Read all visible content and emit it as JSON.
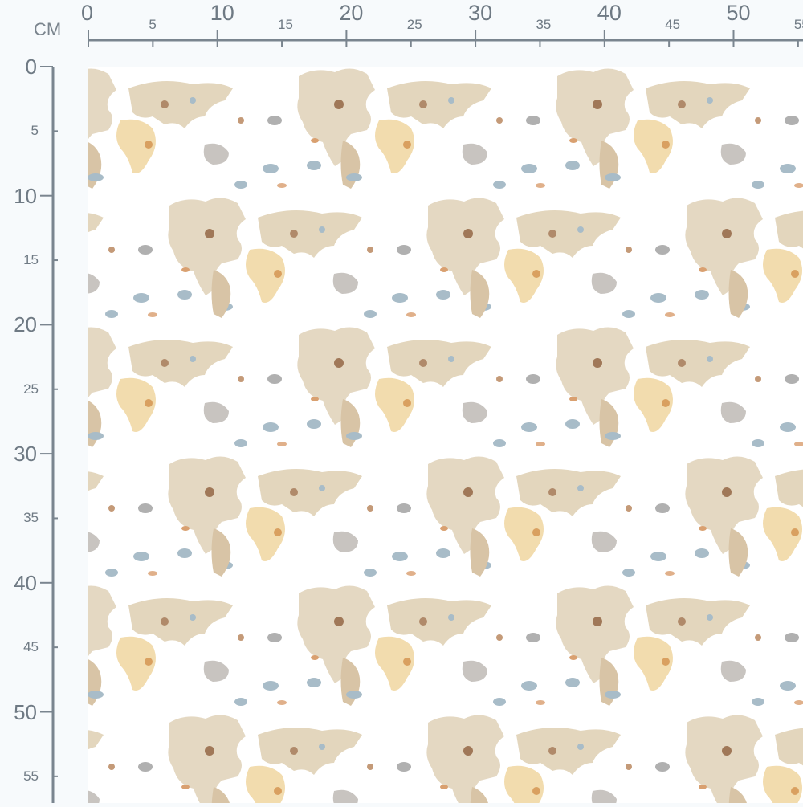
{
  "ruler": {
    "unit": "CM",
    "horizontal_labels": [
      "0",
      "5",
      "10",
      "15",
      "20",
      "25",
      "30",
      "35",
      "40",
      "45",
      "50",
      "55"
    ],
    "vertical_labels": [
      "0",
      "5",
      "10",
      "15",
      "20",
      "25",
      "30",
      "35",
      "40",
      "45",
      "50",
      "55"
    ],
    "color": "#7a858f"
  },
  "fabric": {
    "pattern": "world-map-with-animals",
    "colors": [
      "#e6dcc8",
      "#f2dcae",
      "#c9b89c",
      "#b0a8a0",
      "#a8bcc8",
      "#d9a070"
    ]
  }
}
